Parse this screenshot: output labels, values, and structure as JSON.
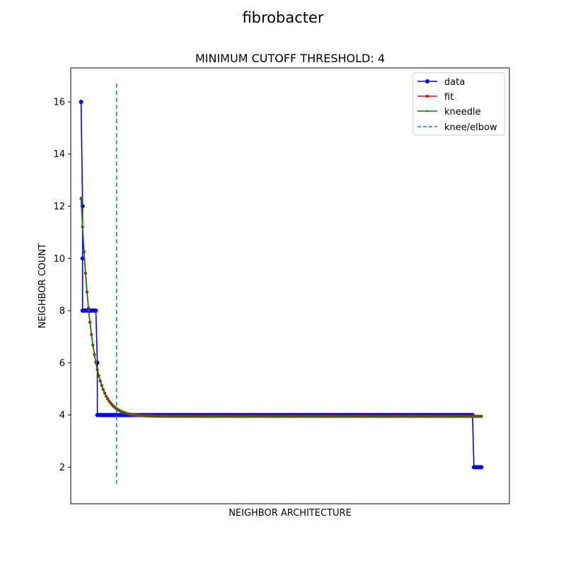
{
  "figure_title": "fibrobacter",
  "chart_data": {
    "type": "line",
    "title": "MINIMUM CUTOFF THRESHOLD: 4",
    "xlabel": "NEIGHBOR ARCHITECTURE",
    "ylabel": "NEIGHBOR COUNT",
    "xlim": [
      -7,
      290
    ],
    "ylim": [
      0.6,
      17.3
    ],
    "yticks": [
      "2",
      "4",
      "6",
      "8",
      "10",
      "12",
      "14",
      "16"
    ],
    "knee_x": 24,
    "knee_ymin": 1.3,
    "knee_ymax": 16.7,
    "legend_position": "top-right",
    "legend": {
      "data": "data",
      "fit": "fit",
      "kneedle": "kneedle",
      "knee": "knee/elbow"
    },
    "data_series": [
      {
        "x0": 0,
        "x1": 0,
        "y": 16
      },
      {
        "x0": 1,
        "x1": 1,
        "y": 12
      },
      {
        "x0": 1,
        "x1": 1,
        "y": 10
      },
      {
        "x0": 1,
        "x1": 10,
        "y": 8
      },
      {
        "x0": 11,
        "x1": 11,
        "y": 6
      },
      {
        "x0": 11,
        "x1": 265,
        "y": 4
      },
      {
        "x0": 266,
        "x1": 271,
        "y": 2
      }
    ],
    "fit_curve": {
      "a": 8.35,
      "k": 0.14,
      "c": 3.95,
      "x_start": 0,
      "x_end": 271
    },
    "colors": {
      "data": "#0000ff",
      "fit": "#ff0000",
      "kneedle": "#008000",
      "knee": "#1f77b4"
    }
  }
}
